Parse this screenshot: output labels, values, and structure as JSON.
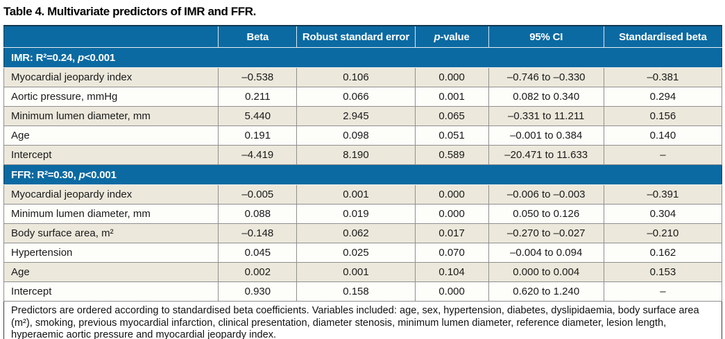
{
  "title": "Table 4. Multivariate predictors of IMR and FFR.",
  "colors": {
    "header_blue": "#0b6aa2",
    "row_beige": "#ece8db",
    "row_white": "#fdfdfa",
    "grid_gray": "#8f8f8f",
    "outer_border": "#3a3a3a"
  },
  "table": {
    "header": {
      "label": "",
      "beta": "Beta",
      "robust_se": "Robust standard error",
      "p_italic": "p",
      "p_rest": "-value",
      "ci": "95% CI",
      "std_beta": "Standardised beta"
    },
    "sections": [
      {
        "title_pre": "IMR: R²=0.24, ",
        "title_p": "p",
        "title_post": "<0.001",
        "rows": [
          {
            "label": "Myocardial jeopardy index",
            "beta": "–0.538",
            "rse": "0.106",
            "p": "0.000",
            "ci": "–0.746 to –0.330",
            "std": "–0.381"
          },
          {
            "label": "Aortic pressure, mmHg",
            "beta": "0.211",
            "rse": "0.066",
            "p": "0.001",
            "ci": "0.082 to 0.340",
            "std": "0.294"
          },
          {
            "label": "Minimum lumen diameter, mm",
            "beta": "5.440",
            "rse": "2.945",
            "p": "0.065",
            "ci": "–0.331 to 11.211",
            "std": "0.156"
          },
          {
            "label": "Age",
            "beta": "0.191",
            "rse": "0.098",
            "p": "0.051",
            "ci": "–0.001 to 0.384",
            "std": "0.140"
          },
          {
            "label": "Intercept",
            "beta": "–4.419",
            "rse": "8.190",
            "p": "0.589",
            "ci": "–20.471 to 11.633",
            "std": "–"
          }
        ]
      },
      {
        "title_pre": "FFR: R²=0.30, ",
        "title_p": "p",
        "title_post": "<0.001",
        "rows": [
          {
            "label": "Myocardial jeopardy index",
            "beta": "–0.005",
            "rse": "0.001",
            "p": "0.000",
            "ci": "–0.006 to –0.003",
            "std": "–0.391"
          },
          {
            "label": "Minimum lumen diameter, mm",
            "beta": "0.088",
            "rse": "0.019",
            "p": "0.000",
            "ci": "0.050 to 0.126",
            "std": "0.304"
          },
          {
            "label": "Body surface area, m²",
            "beta": "–0.148",
            "rse": "0.062",
            "p": "0.017",
            "ci": "–0.270 to –0.027",
            "std": "–0.210"
          },
          {
            "label": "Hypertension",
            "beta": "0.045",
            "rse": "0.025",
            "p": "0.070",
            "ci": "–0.004 to 0.094",
            "std": "0.162"
          },
          {
            "label": "Age",
            "beta": "0.002",
            "rse": "0.001",
            "p": "0.104",
            "ci": "0.000 to 0.004",
            "std": "0.153"
          },
          {
            "label": "Intercept",
            "beta": "0.930",
            "rse": "0.158",
            "p": "0.000",
            "ci": "0.620 to 1.240",
            "std": "–"
          }
        ]
      }
    ],
    "footnote": "Predictors are ordered according to standardised beta coefficients. Variables included: age, sex, hypertension, diabetes, dyslipidaemia, body surface area (m²), smoking, previous myocardial infarction, clinical presentation, diameter stenosis, minimum lumen diameter, reference diameter, lesion length, hyperaemic aortic pressure and myocardial jeopardy index."
  }
}
